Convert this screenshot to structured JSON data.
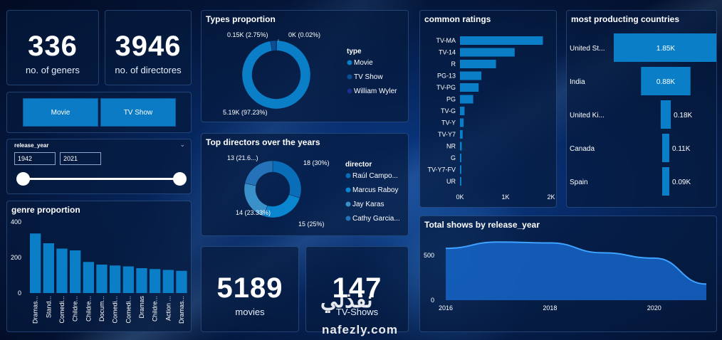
{
  "kpis": {
    "geners": {
      "value": "336",
      "label": "no. of geners"
    },
    "directors": {
      "value": "3946",
      "label": "no. of directores"
    },
    "movies": {
      "value": "5189",
      "label": "movies"
    },
    "tvshows": {
      "value": "147",
      "label": "TV-Shows"
    }
  },
  "buttons": {
    "movie": "Movie",
    "tvshow": "TV Show"
  },
  "slicer": {
    "label": "release_year",
    "from": "1942",
    "to": "2021"
  },
  "watermark": {
    "arabic": "نفذلي",
    "latin": "nafezly.com"
  },
  "colors": {
    "bar": "#0a7fc8",
    "accent": "#1a8fe0",
    "area": "#1565c8"
  },
  "chart_data": [
    {
      "id": "genre",
      "type": "bar",
      "title": "genre proportion",
      "categories": [
        "Dramas...",
        "Stand...",
        "Comedi...",
        "Childre...",
        "Childre...",
        "Docum...",
        "Comedi...",
        "Comedi...",
        "Dramas",
        "Childre...",
        "Action ...",
        "Dramas..."
      ],
      "values": [
        335,
        280,
        250,
        240,
        175,
        160,
        155,
        150,
        140,
        135,
        130,
        125
      ],
      "yticks": [
        "400",
        "200",
        "0"
      ],
      "ylim": [
        0,
        400
      ]
    },
    {
      "id": "types",
      "type": "pie",
      "title": "Types proportion",
      "legend_title": "type",
      "legend": [
        "Movie",
        "TV Show",
        "William Wyler"
      ],
      "values": [
        5189,
        147,
        1
      ],
      "colors": [
        "#0a7fc8",
        "#0a4f96",
        "#1a2f8c"
      ],
      "labels": [
        "5.19K (97.23%)",
        "0.15K (2.75%)",
        "0K (0.02%)"
      ]
    },
    {
      "id": "directors",
      "type": "pie",
      "title": "Top directors over the years",
      "legend_title": "director",
      "legend": [
        "Raúl Campo...",
        "Marcus Raboy",
        "Jay Karas",
        "Cathy Garcia..."
      ],
      "values": [
        18,
        15,
        14,
        13
      ],
      "colors": [
        "#0a6db8",
        "#0a86d0",
        "#3a90c8",
        "#2572b8"
      ],
      "labels": [
        "18 (30%)",
        "15 (25%)",
        "14 (23.33%)",
        "13 (21.6...)"
      ]
    },
    {
      "id": "ratings",
      "type": "bar",
      "title": "common ratings",
      "categories": [
        "TV-MA",
        "TV-14",
        "R",
        "PG-13",
        "TV-PG",
        "PG",
        "TV-G",
        "TV-Y",
        "TV-Y7",
        "NR",
        "G",
        "TV-Y7-FV",
        "UR"
      ],
      "values": [
        1820,
        1200,
        790,
        470,
        410,
        290,
        100,
        80,
        60,
        40,
        20,
        5,
        3
      ],
      "xticks": [
        "0K",
        "1K",
        "2K"
      ],
      "xlim": [
        0,
        2000
      ]
    },
    {
      "id": "countries",
      "type": "bar",
      "title": "most producting countries",
      "categories": [
        "United St...",
        "India",
        "United Ki...",
        "Canada",
        "Spain"
      ],
      "values": [
        1.85,
        0.88,
        0.18,
        0.11,
        0.09
      ],
      "labels": [
        "1.85K",
        "0.88K",
        "0.18K",
        "0.11K",
        "0.09K"
      ]
    },
    {
      "id": "release",
      "type": "area",
      "title": "Total shows by release_year",
      "x": [
        2016,
        2017,
        2018,
        2019,
        2020,
        2021
      ],
      "y": [
        580,
        650,
        640,
        530,
        470,
        180
      ],
      "xticks": [
        "2016",
        "2018",
        "2020"
      ],
      "yticks": [
        "500",
        "0"
      ],
      "ylim": [
        0,
        700
      ]
    }
  ]
}
